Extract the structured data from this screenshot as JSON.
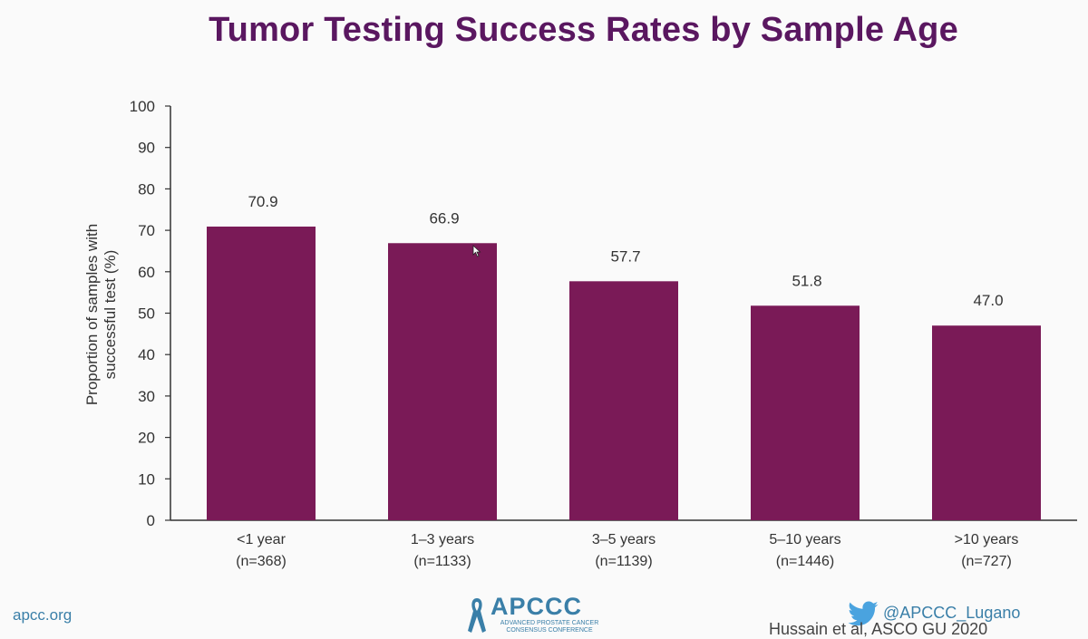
{
  "title": "Tumor Testing Success Rates by Sample Age",
  "chart_data": {
    "type": "bar",
    "title": "Tumor Testing Success Rates by Sample Age",
    "ylabel_line1": "Proportion of samples with",
    "ylabel_line2": "successful test (%)",
    "xlabel": "",
    "ylim": [
      0,
      100
    ],
    "yticks": [
      0,
      10,
      20,
      30,
      40,
      50,
      60,
      70,
      80,
      90,
      100
    ],
    "categories": [
      "<1 year",
      "1–3 years",
      "3–5 years",
      "5–10 years",
      ">10 years"
    ],
    "category_counts": [
      "(n=368)",
      "(n=1133)",
      "(n=1139)",
      "(n=1446)",
      "(n=727)"
    ],
    "values": [
      70.9,
      66.9,
      57.7,
      51.8,
      47.0
    ],
    "value_labels": [
      "70.9",
      "66.9",
      "57.7",
      "51.8",
      "47.0"
    ],
    "bar_color": "#7a1a57",
    "grid": false,
    "legend": "none"
  },
  "footer": {
    "website": "apcc.org",
    "logo_text": "APCCC",
    "logo_subtitle_line1": "ADVANCED PROSTATE CANCER",
    "logo_subtitle_line2": "CONSENSUS CONFERENCE",
    "twitter_handle": "@APCCC_Lugano",
    "citation": "Hussain et al,  ASCO GU 2020"
  },
  "colors": {
    "title": "#5a1760",
    "bar": "#7a1a57",
    "accent": "#3a7fa8"
  }
}
